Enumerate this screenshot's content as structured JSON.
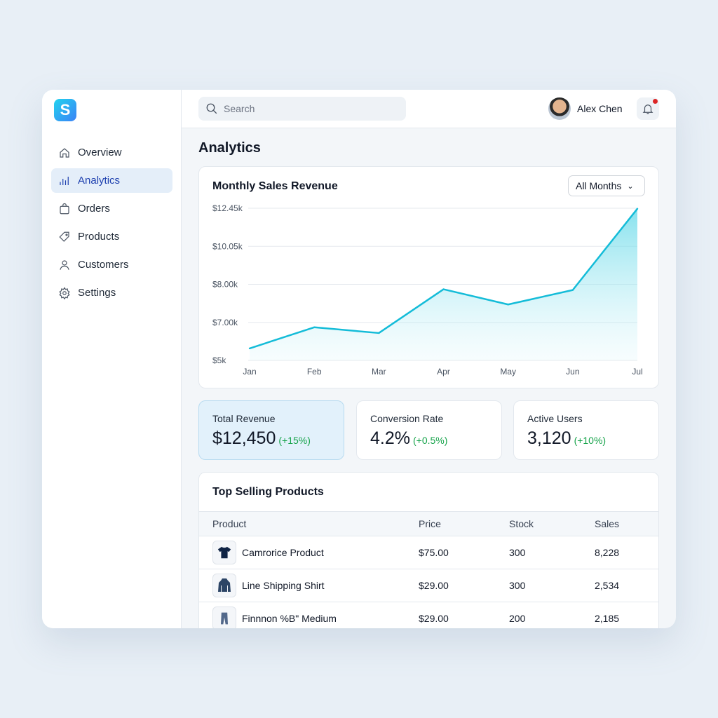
{
  "logo": {
    "letter": "S"
  },
  "sidebar": {
    "items": [
      {
        "label": "Overview",
        "icon": "home-icon"
      },
      {
        "label": "Analytics",
        "icon": "bar-chart-icon",
        "active": true
      },
      {
        "label": "Orders",
        "icon": "shopping-bag-icon"
      },
      {
        "label": "Products",
        "icon": "tag-icon"
      },
      {
        "label": "Customers",
        "icon": "user-icon"
      },
      {
        "label": "Settings",
        "icon": "gear-icon"
      }
    ]
  },
  "header": {
    "search_placeholder": "Search",
    "user_name": "Alex Chen",
    "notification_dot_color": "#dc2626"
  },
  "page_title": "Analytics",
  "chart_card": {
    "title": "Monthly Sales Revenue",
    "filter": "All Months"
  },
  "chart_data": {
    "type": "area",
    "title": "Monthly Sales Revenue",
    "categories": [
      "Jan",
      "Feb",
      "Mar",
      "Apr",
      "May",
      "Jun",
      "Jul"
    ],
    "values": [
      5630,
      6740,
      6440,
      7870,
      7470,
      7850,
      12420
    ],
    "y_ticks": [
      {
        "value": 5000,
        "label": "$5k"
      },
      {
        "value": 7000,
        "label": "$7.00k"
      },
      {
        "value": 8000,
        "label": "$8.00k"
      },
      {
        "value": 10050,
        "label": "$10.05k"
      },
      {
        "value": 12450,
        "label": "$12.45k"
      }
    ],
    "grid": true,
    "color": "#14bcd8"
  },
  "stats": [
    {
      "label": "Total Revenue",
      "value": "$12,450",
      "delta": "(+15%)"
    },
    {
      "label": "Conversion Rate",
      "value": "4.2%",
      "delta": "(+0.5%)"
    },
    {
      "label": "Active Users",
      "value": "3,120",
      "delta": "(+10%)"
    }
  ],
  "table": {
    "title": "Top Selling Products",
    "columns": [
      "Product",
      "Price",
      "Stock",
      "Sales"
    ],
    "rows": [
      {
        "name": "Camrorice Product",
        "price": "$75.00",
        "stock": "300",
        "sales": "8,228",
        "icon": "tshirt-icon"
      },
      {
        "name": "Line Shipping Shirt",
        "price": "$29.00",
        "stock": "300",
        "sales": "2,534",
        "icon": "hoodie-icon"
      },
      {
        "name": "Finnnon %B\" Medium",
        "price": "$29.00",
        "stock": "200",
        "sales": "2,185",
        "icon": "pants-icon"
      }
    ]
  }
}
